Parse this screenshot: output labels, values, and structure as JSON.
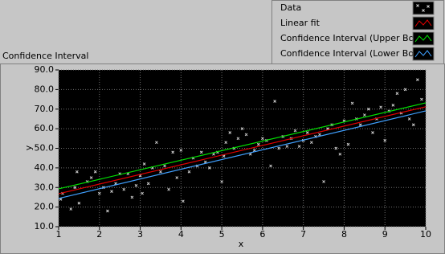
{
  "chart_data": {
    "type": "scatter",
    "title": "Confidence Interval",
    "x_label": "x",
    "y_label": "y",
    "xlim": [
      1,
      10
    ],
    "ylim": [
      10,
      90
    ],
    "xticks": [
      1,
      2,
      3,
      4,
      5,
      6,
      7,
      8,
      9,
      10
    ],
    "yticks": [
      {
        "value": 10,
        "label": "10.0"
      },
      {
        "value": 20,
        "label": "20.0"
      },
      {
        "value": 30,
        "label": "30.0"
      },
      {
        "value": 40,
        "label": "40.0"
      },
      {
        "value": 50,
        "label": "50.0"
      },
      {
        "value": 60,
        "label": "60.0"
      },
      {
        "value": 70,
        "label": "70.0"
      },
      {
        "value": 80,
        "label": "80.0"
      },
      {
        "value": 90,
        "label": "90.0"
      }
    ],
    "grid": true,
    "series": [
      {
        "name": "Data",
        "type": "scatter",
        "color": "#d0d0d0",
        "x": [
          1.05,
          1.1,
          1.3,
          1.4,
          1.45,
          1.5,
          1.7,
          1.8,
          1.9,
          2.0,
          2.1,
          2.2,
          2.3,
          2.4,
          2.5,
          2.6,
          2.7,
          2.8,
          2.9,
          3.0,
          3.05,
          3.1,
          3.2,
          3.3,
          3.4,
          3.5,
          3.6,
          3.7,
          3.8,
          3.9,
          4.0,
          4.05,
          4.2,
          4.3,
          4.4,
          4.5,
          4.6,
          4.7,
          4.8,
          4.9,
          5.0,
          5.05,
          5.1,
          5.2,
          5.3,
          5.4,
          5.5,
          5.6,
          5.7,
          5.8,
          5.9,
          6.0,
          6.1,
          6.2,
          6.3,
          6.4,
          6.5,
          6.6,
          6.7,
          6.8,
          6.9,
          7.0,
          7.1,
          7.2,
          7.3,
          7.4,
          7.5,
          7.6,
          7.7,
          7.8,
          7.9,
          8.0,
          8.1,
          8.2,
          8.3,
          8.4,
          8.5,
          8.6,
          8.7,
          8.8,
          8.9,
          9.0,
          9.1,
          9.2,
          9.3,
          9.4,
          9.5,
          9.6,
          9.7,
          9.8,
          9.9
        ],
        "values": [
          24,
          27,
          19,
          30,
          38,
          22,
          33,
          35,
          38,
          27,
          30,
          18,
          28,
          32,
          37,
          29,
          37,
          25,
          31,
          36,
          27,
          42,
          32,
          40,
          53,
          38,
          41,
          29,
          48,
          35,
          49,
          23,
          38,
          45,
          41,
          48,
          43,
          40,
          47,
          48,
          33,
          46,
          53,
          58,
          50,
          55,
          60,
          57,
          47,
          49,
          52,
          55,
          54,
          41,
          74,
          50,
          56,
          51,
          55,
          59,
          51,
          54,
          58,
          53,
          56,
          57,
          33,
          60,
          62,
          50,
          47,
          64,
          52,
          73,
          65,
          62,
          67,
          70,
          58,
          65,
          71,
          54,
          69,
          72,
          78,
          68,
          80,
          65,
          62,
          85,
          75
        ]
      },
      {
        "name": "Linear fit",
        "type": "line",
        "color": "#e00000",
        "x": [
          1,
          10
        ],
        "values": [
          26.8,
          71.2
        ]
      },
      {
        "name": "Confidence Interval (Upper Bound)",
        "type": "line",
        "color": "#00e000",
        "x": [
          1,
          10
        ],
        "values": [
          29.3,
          73.2
        ]
      },
      {
        "name": "Confidence Interval (Lower Bound)",
        "type": "line",
        "color": "#40a0ff",
        "x": [
          1,
          10
        ],
        "values": [
          24.4,
          69.1
        ]
      }
    ]
  }
}
